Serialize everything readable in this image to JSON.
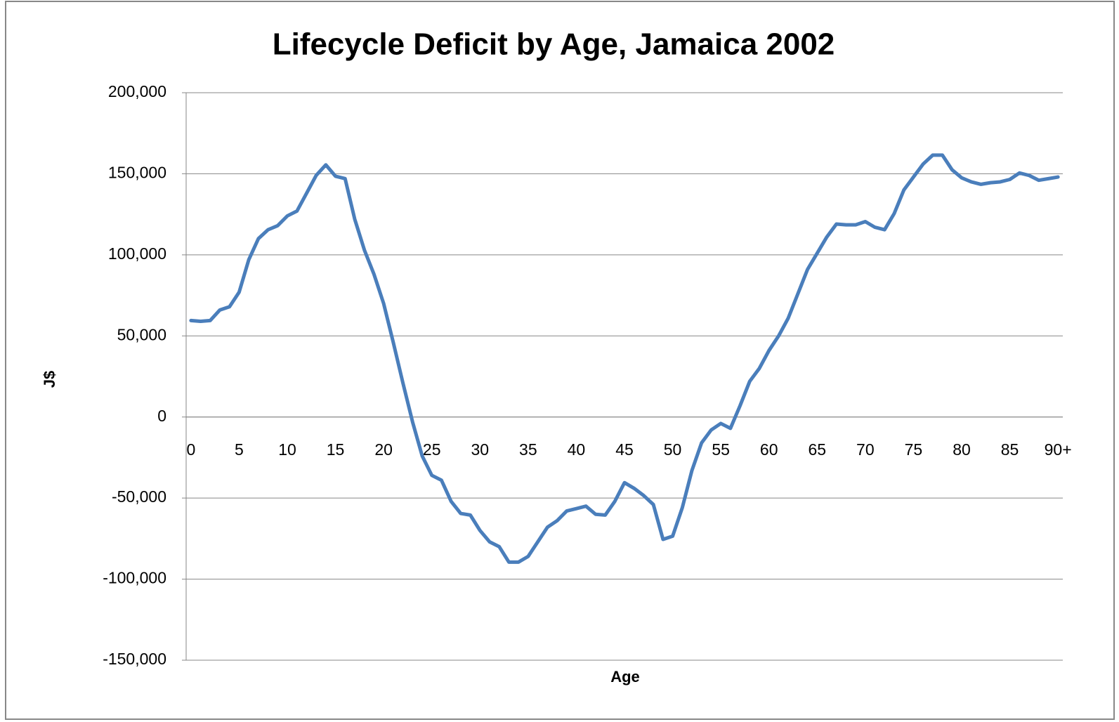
{
  "chart_data": {
    "type": "line",
    "title": "Lifecycle Deficit by Age, Jamaica 2002",
    "x_label": "Age",
    "y_label": "J$",
    "categories": [
      "0",
      null,
      null,
      null,
      null,
      "5",
      null,
      null,
      null,
      null,
      "10",
      null,
      null,
      null,
      null,
      "15",
      null,
      null,
      null,
      null,
      "20",
      null,
      null,
      null,
      null,
      "25",
      null,
      null,
      null,
      null,
      "30",
      null,
      null,
      null,
      null,
      "35",
      null,
      null,
      null,
      null,
      "40",
      null,
      null,
      null,
      null,
      "45",
      null,
      null,
      null,
      null,
      "50",
      null,
      null,
      null,
      null,
      "55",
      null,
      null,
      null,
      null,
      "60",
      null,
      null,
      null,
      null,
      "65",
      null,
      null,
      null,
      null,
      "70",
      null,
      null,
      null,
      null,
      "75",
      null,
      null,
      null,
      null,
      "80",
      null,
      null,
      null,
      null,
      "85",
      null,
      null,
      null,
      null,
      "90+"
    ],
    "values": [
      59500,
      59000,
      59500,
      66000,
      68000,
      77000,
      97000,
      110000,
      115500,
      118000,
      124000,
      127000,
      138000,
      149000,
      155500,
      148500,
      147000,
      122000,
      103000,
      88000,
      70000,
      46000,
      21000,
      -3000,
      -24000,
      -36000,
      -39000,
      -52000,
      -59500,
      -60500,
      -70000,
      -77000,
      -80000,
      -89500,
      -89500,
      -86000,
      -77000,
      -68000,
      -64000,
      -58000,
      -56500,
      -55000,
      -60000,
      -60500,
      -52000,
      -40500,
      -44000,
      -48500,
      -54000,
      -75500,
      -73500,
      -56000,
      -33000,
      -16000,
      -8000,
      -4000,
      -7000,
      7000,
      22000,
      30000,
      41000,
      50000,
      61000,
      76000,
      91000,
      101000,
      111000,
      119000,
      118500,
      118500,
      120500,
      117000,
      115500,
      125500,
      140000,
      148000,
      156000,
      161500,
      161500,
      152500,
      147500,
      145000,
      143500,
      144500,
      145000,
      146500,
      150500,
      149000,
      146000,
      147000,
      148000
    ],
    "color": "#4a7ebb",
    "ylim": [
      -150000,
      200000
    ],
    "yticks": [
      {
        "value": -150000,
        "label": "-150,000"
      },
      {
        "value": -100000,
        "label": "-100,000"
      },
      {
        "value": -50000,
        "label": "-50,000"
      },
      0,
      {
        "value": 50000,
        "label": "50,000"
      },
      {
        "value": 100000,
        "label": "100,000"
      },
      {
        "value": 150000,
        "label": "150,000"
      },
      {
        "value": 200000,
        "label": "200,000"
      }
    ],
    "grid": true
  }
}
